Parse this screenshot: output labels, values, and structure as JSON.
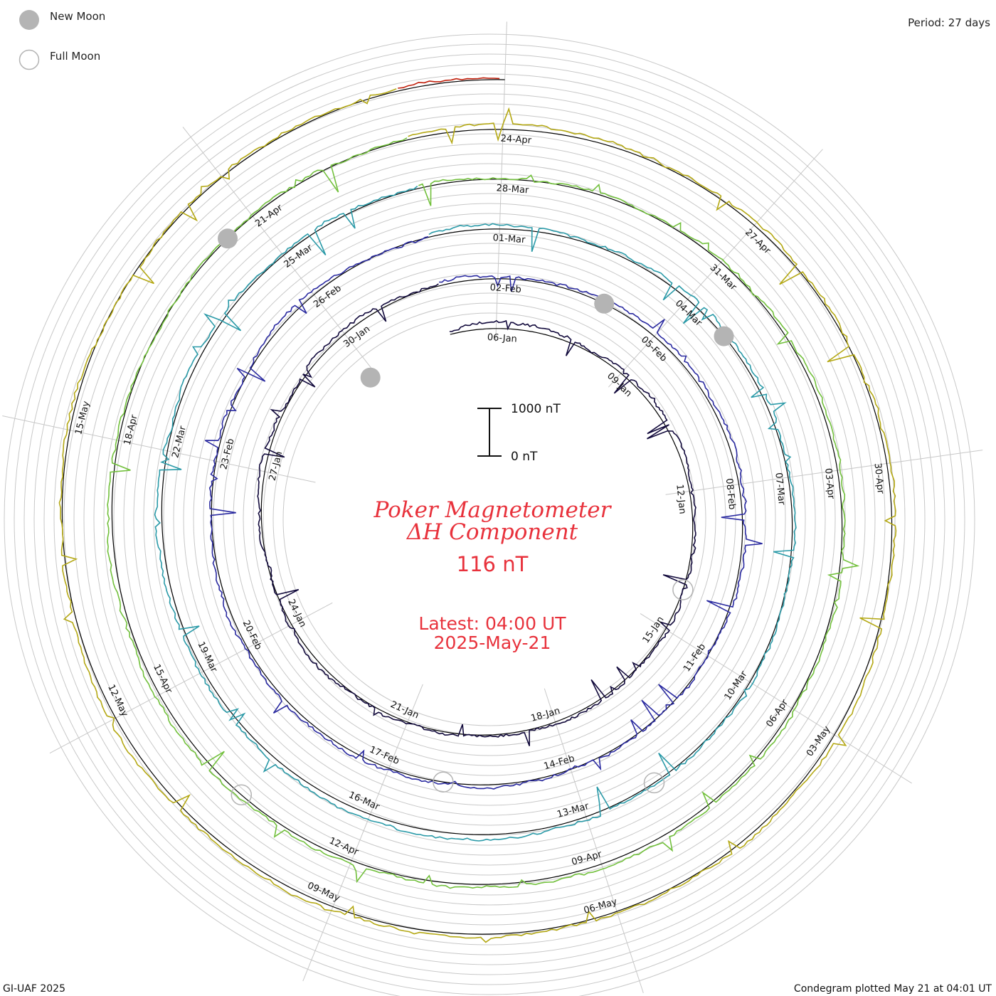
{
  "chart_data": {
    "type": "line",
    "title": "Poker Magnetometer",
    "subtitle": "ΔH Component",
    "value": "116 nT",
    "latest_time": "Latest: 04:00 UT",
    "latest_date": "2025-May-21",
    "period": "Period: 27 days",
    "credit": "GI-UAF 2025",
    "plotted": "Condegram plotted May 21 at 04:01 UT",
    "scale": {
      "top_label": "1000 nT",
      "bottom_label": "0 nT",
      "top_value": 1000,
      "bottom_value": 0
    },
    "legend": [
      {
        "label": "New Moon",
        "kind": "new",
        "color": "#b4b4b4"
      },
      {
        "label": "Full Moon",
        "kind": "full",
        "color": "#b4b4b4"
      }
    ],
    "rings": [
      {
        "color": "#120a3c",
        "dates": [
          "06-Jan",
          "09-Jan",
          "12-Jan",
          "15-Jan",
          "18-Jan",
          "21-Jan",
          "24-Jan",
          "27-Jan",
          "30-Jan"
        ]
      },
      {
        "color": "#2a2aa0",
        "dates": [
          "02-Feb",
          "05-Feb",
          "08-Feb",
          "11-Feb",
          "14-Feb",
          "17-Feb",
          "20-Feb",
          "23-Feb",
          "26-Feb"
        ]
      },
      {
        "color": "#2a9aa8",
        "dates": [
          "01-Mar",
          "04-Mar",
          "07-Mar",
          "10-Mar",
          "13-Mar",
          "16-Mar",
          "19-Mar",
          "22-Mar",
          "25-Mar"
        ]
      },
      {
        "color": "#72c03c",
        "dates": [
          "28-Mar",
          "31-Mar",
          "03-Apr",
          "06-Apr",
          "09-Apr",
          "12-Apr",
          "15-Apr",
          "18-Apr",
          "21-Apr"
        ]
      },
      {
        "color": "#b4a814",
        "dates": [
          "24-Apr",
          "27-Apr",
          "30-Apr",
          "03-May",
          "06-May",
          "09-May",
          "12-May",
          "15-May"
        ]
      },
      {
        "color": "#c01e0a",
        "dates": []
      }
    ],
    "new_moon_deg": [
      -40,
      28,
      52,
      317
    ],
    "full_moon_deg": [
      110,
      190,
      148,
      222
    ]
  }
}
